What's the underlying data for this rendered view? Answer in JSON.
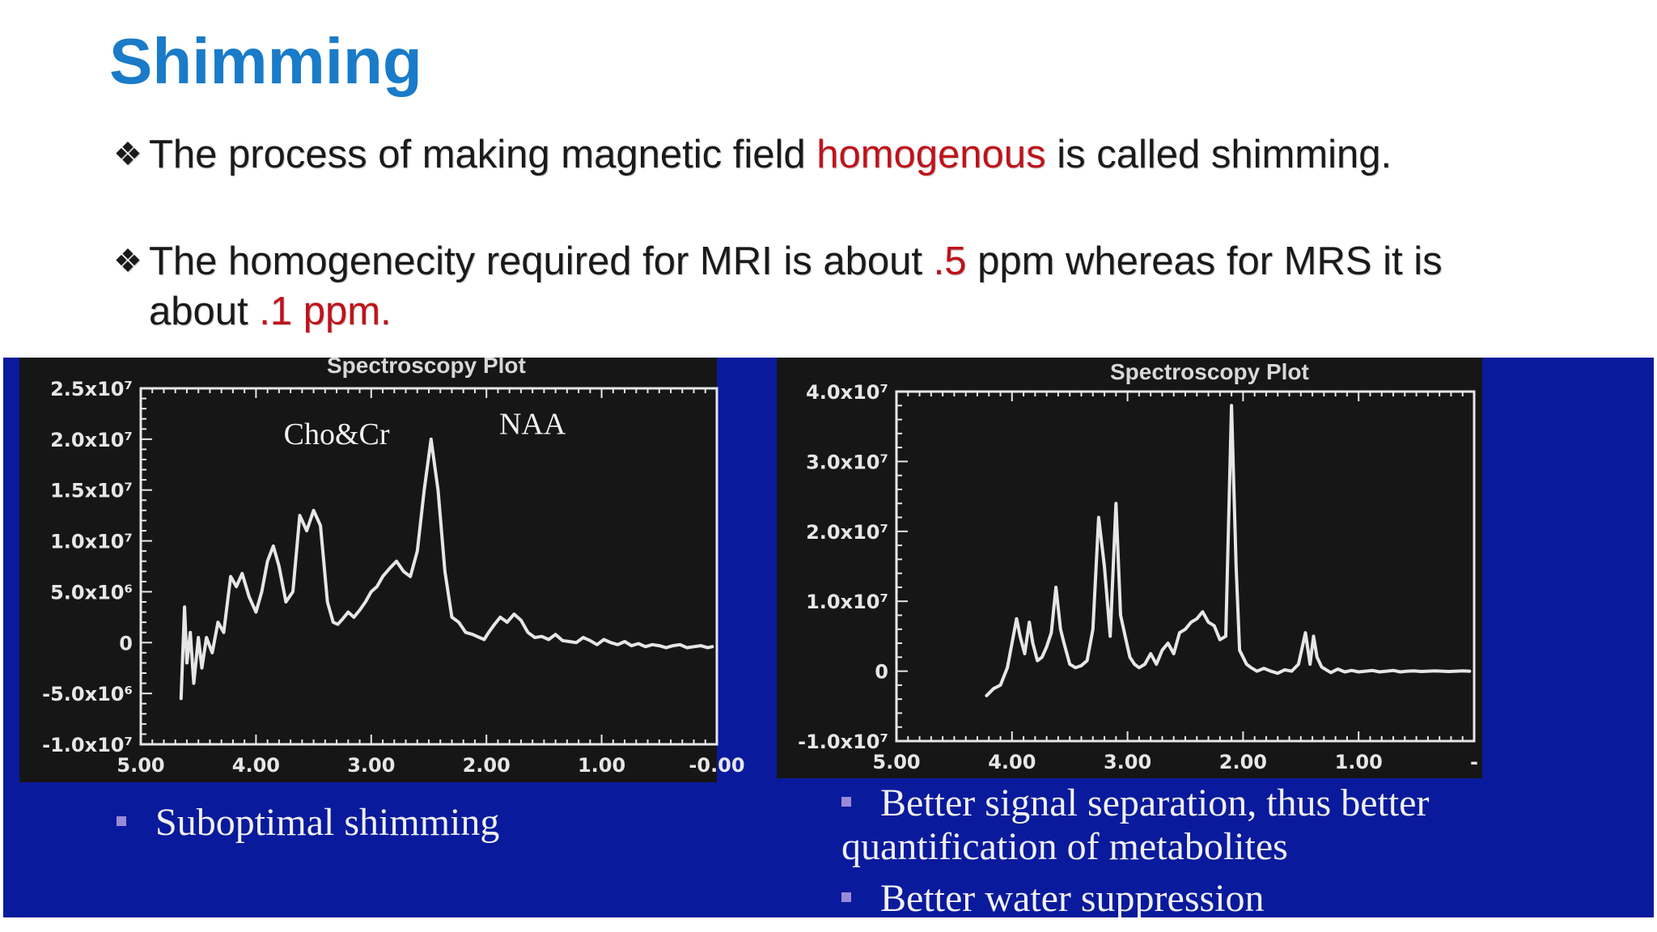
{
  "slide": {
    "title": "Shimming",
    "bullet_marker": "❖",
    "bullet1": {
      "pre": "The process of making magnetic field ",
      "highlight": "homogenous",
      "post": " is called shimming."
    },
    "bullet2": {
      "pre": "The homogenecity required for MRI is about ",
      "highlight1": ".5",
      "mid": " ppm whereas for MRS it is",
      "line2_pre": "about ",
      "highlight2": ".1 ppm."
    }
  },
  "colors": {
    "title": "#1a7bc8",
    "highlight": "#c0121a",
    "panel": "#0a1a9c",
    "plot_bg": "#161616",
    "trace": "#e6e6e6"
  },
  "left_caption": "Suboptimal shimming",
  "right_captions": [
    "Better signal separation, thus better quantification of metabolites",
    "Better water suppression"
  ],
  "chart_data": [
    {
      "type": "line",
      "title": "Spectroscopy Plot",
      "xlabel": "",
      "ylabel": "",
      "x_reversed": true,
      "xlim": [
        5.0,
        0.0
      ],
      "ylim": [
        -10000000.0,
        25000000.0
      ],
      "xtick_labels": [
        "5.00",
        "4.00",
        "3.00",
        "2.00",
        "1.00",
        "-0.00"
      ],
      "xtick_values": [
        5.0,
        4.0,
        3.0,
        2.0,
        1.0,
        0.0
      ],
      "ytick_labels": [
        "2.5x10⁷",
        "2.0x10⁷",
        "1.5x10⁷",
        "1.0x10⁷",
        "5.0x10⁶",
        "0",
        "-5.0x10⁶",
        "-1.0x10⁷"
      ],
      "ytick_values": [
        25000000.0,
        20000000.0,
        15000000.0,
        10000000.0,
        5000000.0,
        0,
        -5000000.0,
        -10000000.0
      ],
      "annotations": [
        {
          "text": "Cho&Cr",
          "x": 3.3,
          "y": 19500000.0
        },
        {
          "text": "NAA",
          "x": 1.6,
          "y": 20500000.0
        }
      ],
      "series": [
        {
          "x": [
            4.65,
            4.62,
            4.6,
            4.57,
            4.54,
            4.5,
            4.47,
            4.43,
            4.38,
            4.33,
            4.28,
            4.22,
            4.17,
            4.12,
            4.06,
            4.0,
            3.95,
            3.9,
            3.85,
            3.8,
            3.74,
            3.68,
            3.62,
            3.56,
            3.5,
            3.44,
            3.38,
            3.33,
            3.29,
            3.25,
            3.2,
            3.15,
            3.1,
            3.05,
            3.0,
            2.95,
            2.9,
            2.84,
            2.78,
            2.72,
            2.66,
            2.6,
            2.54,
            2.48,
            2.42,
            2.36,
            2.3,
            2.24,
            2.18,
            2.12,
            2.06,
            2.02,
            1.98,
            1.93,
            1.88,
            1.82,
            1.76,
            1.7,
            1.64,
            1.58,
            1.52,
            1.46,
            1.4,
            1.34,
            1.28,
            1.22,
            1.16,
            1.1,
            1.04,
            0.98,
            0.92,
            0.86,
            0.8,
            0.74,
            0.68,
            0.62,
            0.56,
            0.5,
            0.44,
            0.38,
            0.32,
            0.26,
            0.2,
            0.14,
            0.08,
            0.04
          ],
          "y": [
            -5500000.0,
            3500000.0,
            -2000000.0,
            1000000.0,
            -4000000.0,
            500000.0,
            -2500000.0,
            500000.0,
            -1000000.0,
            2000000.0,
            1000000.0,
            6500000.0,
            5500000.0,
            6800000.0,
            4500000.0,
            3000000.0,
            5000000.0,
            8000000.0,
            9500000.0,
            7500000.0,
            4000000.0,
            5000000.0,
            12500000.0,
            11000000.0,
            13000000.0,
            11500000.0,
            4000000.0,
            2000000.0,
            1800000.0,
            2300000.0,
            3000000.0,
            2500000.0,
            3200000.0,
            4000000.0,
            5000000.0,
            5500000.0,
            6500000.0,
            7300000.0,
            8000000.0,
            7000000.0,
            6500000.0,
            9000000.0,
            15000000.0,
            20000000.0,
            15000000.0,
            7000000.0,
            2500000.0,
            2000000.0,
            1000000.0,
            800000.0,
            500000.0,
            300000.0,
            1000000.0,
            1800000.0,
            2500000.0,
            2000000.0,
            2800000.0,
            2200000.0,
            1000000.0,
            500000.0,
            600000.0,
            300000.0,
            800000.0,
            200000.0,
            100000.0,
            0.0,
            500000.0,
            200000.0,
            -200000.0,
            300000.0,
            0.0,
            -200000.0,
            100000.0,
            -300000.0,
            -100000.0,
            -400000.0,
            -200000.0,
            -300000.0,
            -500000.0,
            -300000.0,
            -200000.0,
            -500000.0,
            -400000.0,
            -300000.0,
            -500000.0,
            -400000.0
          ]
        }
      ]
    },
    {
      "type": "line",
      "title": "Spectroscopy Plot",
      "xlabel": "",
      "ylabel": "",
      "x_reversed": true,
      "xlim": [
        5.0,
        0.0
      ],
      "ylim": [
        -10000000.0,
        40000000.0
      ],
      "xtick_labels": [
        "5.00",
        "4.00",
        "3.00",
        "2.00",
        "1.00",
        "-"
      ],
      "xtick_values": [
        5.0,
        4.0,
        3.0,
        2.0,
        1.0,
        0.0
      ],
      "ytick_labels": [
        "4.0x10⁷",
        "3.0x10⁷",
        "2.0x10⁷",
        "1.0x10⁷",
        "0",
        "-1.0x10⁷"
      ],
      "ytick_values": [
        40000000.0,
        30000000.0,
        20000000.0,
        10000000.0,
        0,
        -10000000.0
      ],
      "series": [
        {
          "x": [
            4.22,
            4.16,
            4.1,
            4.04,
            4.0,
            3.96,
            3.93,
            3.89,
            3.85,
            3.82,
            3.78,
            3.74,
            3.7,
            3.66,
            3.62,
            3.58,
            3.55,
            3.5,
            3.45,
            3.4,
            3.35,
            3.3,
            3.25,
            3.2,
            3.15,
            3.1,
            3.06,
            3.02,
            2.98,
            2.94,
            2.9,
            2.85,
            2.8,
            2.75,
            2.7,
            2.65,
            2.6,
            2.55,
            2.5,
            2.45,
            2.4,
            2.35,
            2.3,
            2.25,
            2.2,
            2.15,
            2.1,
            2.06,
            2.03,
            2.0,
            1.97,
            1.93,
            1.88,
            1.82,
            1.76,
            1.7,
            1.64,
            1.58,
            1.52,
            1.46,
            1.42,
            1.39,
            1.36,
            1.32,
            1.28,
            1.24,
            1.18,
            1.12,
            1.06,
            1.0,
            0.94,
            0.88,
            0.82,
            0.76,
            0.7,
            0.64,
            0.58,
            0.52,
            0.46,
            0.4,
            0.34,
            0.28,
            0.22,
            0.16,
            0.1,
            0.04
          ],
          "y": [
            -3500000.0,
            -2500000.0,
            -2000000.0,
            500000.0,
            4000000.0,
            7500000.0,
            5000000.0,
            2500000.0,
            7000000.0,
            4000000.0,
            1500000.0,
            2000000.0,
            3500000.0,
            5500000.0,
            12000000.0,
            6000000.0,
            4000000.0,
            1000000.0,
            500000.0,
            800000.0,
            1500000.0,
            6000000.0,
            22000000.0,
            15000000.0,
            5000000.0,
            24000000.0,
            8000000.0,
            5000000.0,
            2000000.0,
            1000000.0,
            500000.0,
            1000000.0,
            2500000.0,
            1000000.0,
            3000000.0,
            4000000.0,
            2500000.0,
            5500000.0,
            6000000.0,
            7000000.0,
            7500000.0,
            8500000.0,
            7000000.0,
            6500000.0,
            4500000.0,
            5000000.0,
            38000000.0,
            15000000.0,
            3000000.0,
            2000000.0,
            1000000.0,
            500000.0,
            0.0,
            400000.0,
            0.0,
            -300000.0,
            200000.0,
            0.0,
            1000000.0,
            5500000.0,
            1000000.0,
            5000000.0,
            2000000.0,
            600000.0,
            200000.0,
            -200000.0,
            300000.0,
            -100000.0,
            100000.0,
            -100000.0,
            0.0,
            100000.0,
            -100000.0,
            0.0,
            100000.0,
            -100000.0,
            0.0,
            50000.0,
            -50000.0,
            0.0,
            50000.0,
            0.0,
            -50000.0,
            0.0,
            50000.0,
            0.0
          ]
        }
      ]
    }
  ]
}
